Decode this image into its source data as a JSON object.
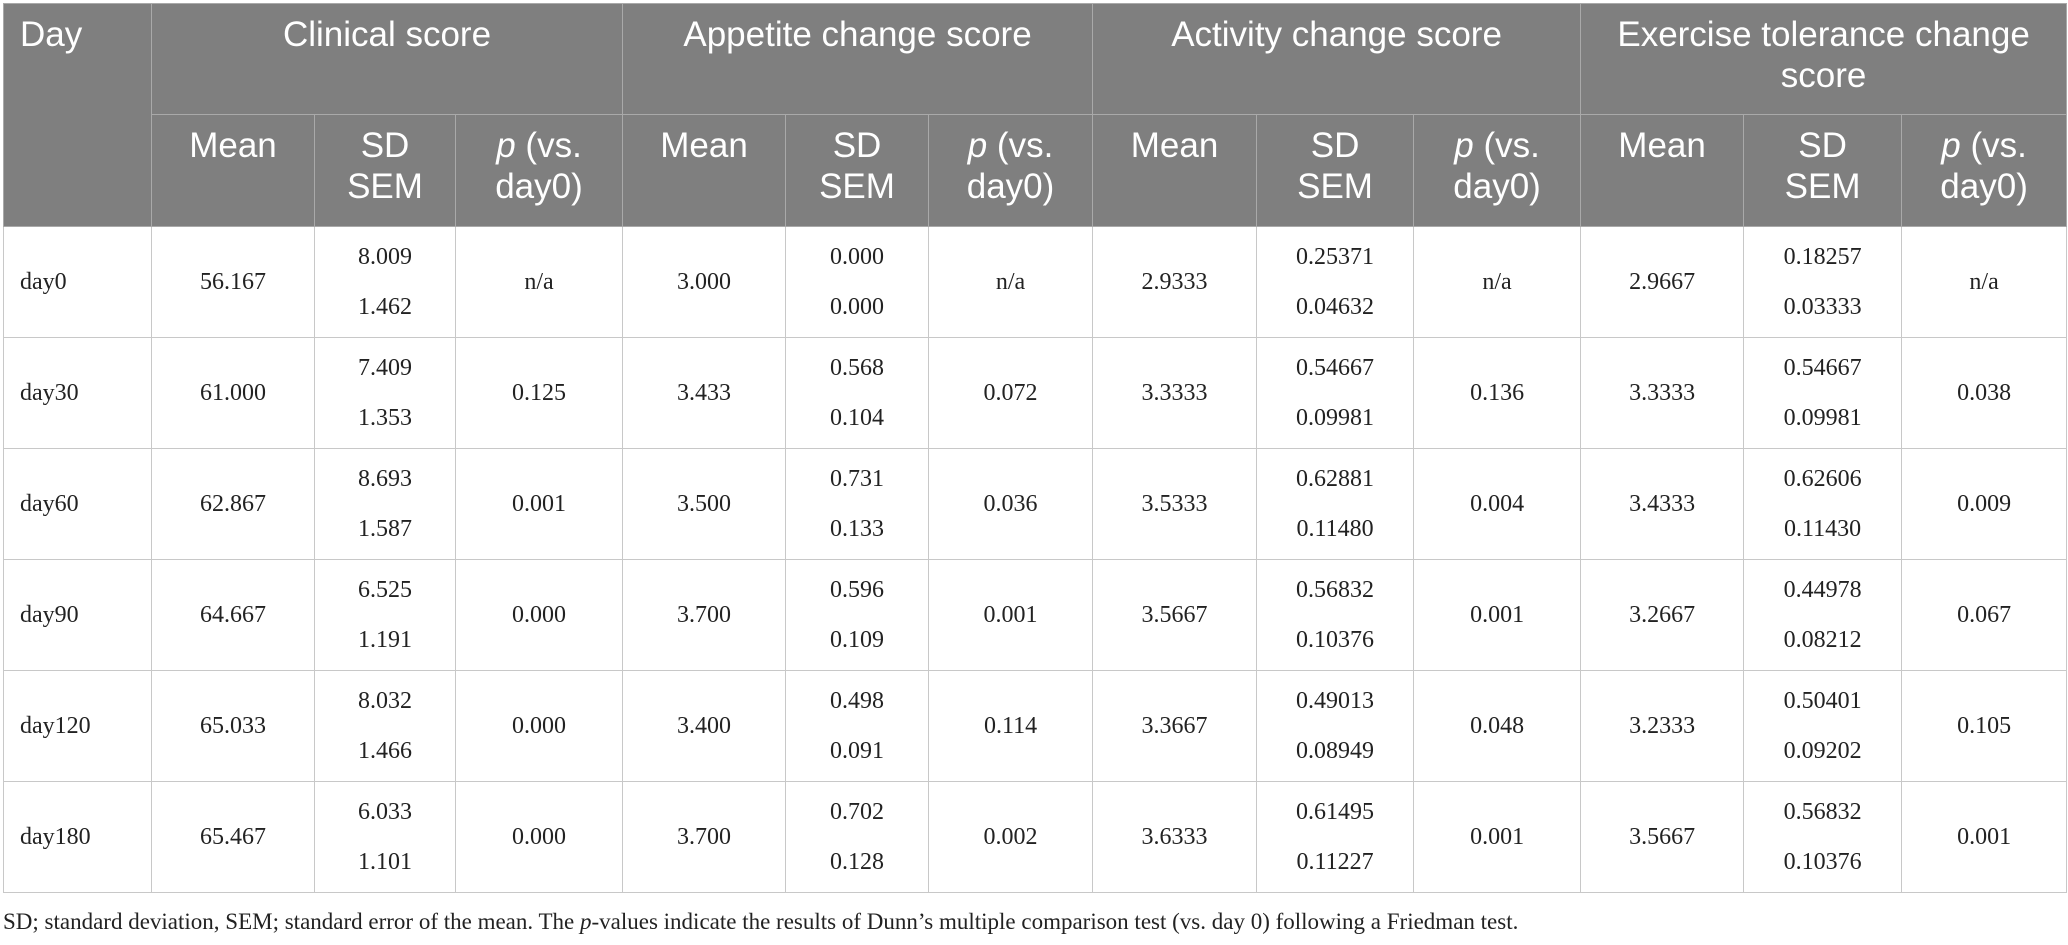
{
  "header": {
    "day": "Day",
    "groups": [
      "Clinical score",
      "Appetite change score",
      "Activity change score",
      "Exercise tolerance change score"
    ],
    "sub": {
      "mean": "Mean",
      "sd": "SD",
      "sem": "SEM",
      "p_italic": "p",
      "p_rest": " (vs. day0)"
    }
  },
  "rows": [
    {
      "day": "day0",
      "clinical": {
        "mean": "56.167",
        "sd": "8.009",
        "sem": "1.462",
        "p": "n/a"
      },
      "appetite": {
        "mean": "3.000",
        "sd": "0.000",
        "sem": "0.000",
        "p": "n/a"
      },
      "activity": {
        "mean": "2.9333",
        "sd": "0.25371",
        "sem": "0.04632",
        "p": "n/a"
      },
      "exercise": {
        "mean": "2.9667",
        "sd": "0.18257",
        "sem": "0.03333",
        "p": "n/a"
      }
    },
    {
      "day": "day30",
      "clinical": {
        "mean": "61.000",
        "sd": "7.409",
        "sem": "1.353",
        "p": "0.125"
      },
      "appetite": {
        "mean": "3.433",
        "sd": "0.568",
        "sem": "0.104",
        "p": "0.072"
      },
      "activity": {
        "mean": "3.3333",
        "sd": "0.54667",
        "sem": "0.09981",
        "p": "0.136"
      },
      "exercise": {
        "mean": "3.3333",
        "sd": "0.54667",
        "sem": "0.09981",
        "p": "0.038"
      }
    },
    {
      "day": "day60",
      "clinical": {
        "mean": "62.867",
        "sd": "8.693",
        "sem": "1.587",
        "p": "0.001"
      },
      "appetite": {
        "mean": "3.500",
        "sd": "0.731",
        "sem": "0.133",
        "p": "0.036"
      },
      "activity": {
        "mean": "3.5333",
        "sd": "0.62881",
        "sem": "0.11480",
        "p": "0.004"
      },
      "exercise": {
        "mean": "3.4333",
        "sd": "0.62606",
        "sem": "0.11430",
        "p": "0.009"
      }
    },
    {
      "day": "day90",
      "clinical": {
        "mean": "64.667",
        "sd": "6.525",
        "sem": "1.191",
        "p": "0.000"
      },
      "appetite": {
        "mean": "3.700",
        "sd": "0.596",
        "sem": "0.109",
        "p": "0.001"
      },
      "activity": {
        "mean": "3.5667",
        "sd": "0.56832",
        "sem": "0.10376",
        "p": "0.001"
      },
      "exercise": {
        "mean": "3.2667",
        "sd": "0.44978",
        "sem": "0.08212",
        "p": "0.067"
      }
    },
    {
      "day": "day120",
      "clinical": {
        "mean": "65.033",
        "sd": "8.032",
        "sem": "1.466",
        "p": "0.000"
      },
      "appetite": {
        "mean": "3.400",
        "sd": "0.498",
        "sem": "0.091",
        "p": "0.114"
      },
      "activity": {
        "mean": "3.3667",
        "sd": "0.49013",
        "sem": "0.08949",
        "p": "0.048"
      },
      "exercise": {
        "mean": "3.2333",
        "sd": "0.50401",
        "sem": "0.09202",
        "p": "0.105"
      }
    },
    {
      "day": "day180",
      "clinical": {
        "mean": "65.467",
        "sd": "6.033",
        "sem": "1.101",
        "p": "0.000"
      },
      "appetite": {
        "mean": "3.700",
        "sd": "0.702",
        "sem": "0.128",
        "p": "0.002"
      },
      "activity": {
        "mean": "3.6333",
        "sd": "0.61495",
        "sem": "0.11227",
        "p": "0.001"
      },
      "exercise": {
        "mean": "3.5667",
        "sd": "0.56832",
        "sem": "0.10376",
        "p": "0.001"
      }
    }
  ],
  "footnote": {
    "part1": "SD; standard deviation, SEM; standard error of the mean. The ",
    "italic": "p",
    "part2": "-values indicate the results of Dunn’s multiple comparison test (vs. day 0) following a Friedman test."
  }
}
